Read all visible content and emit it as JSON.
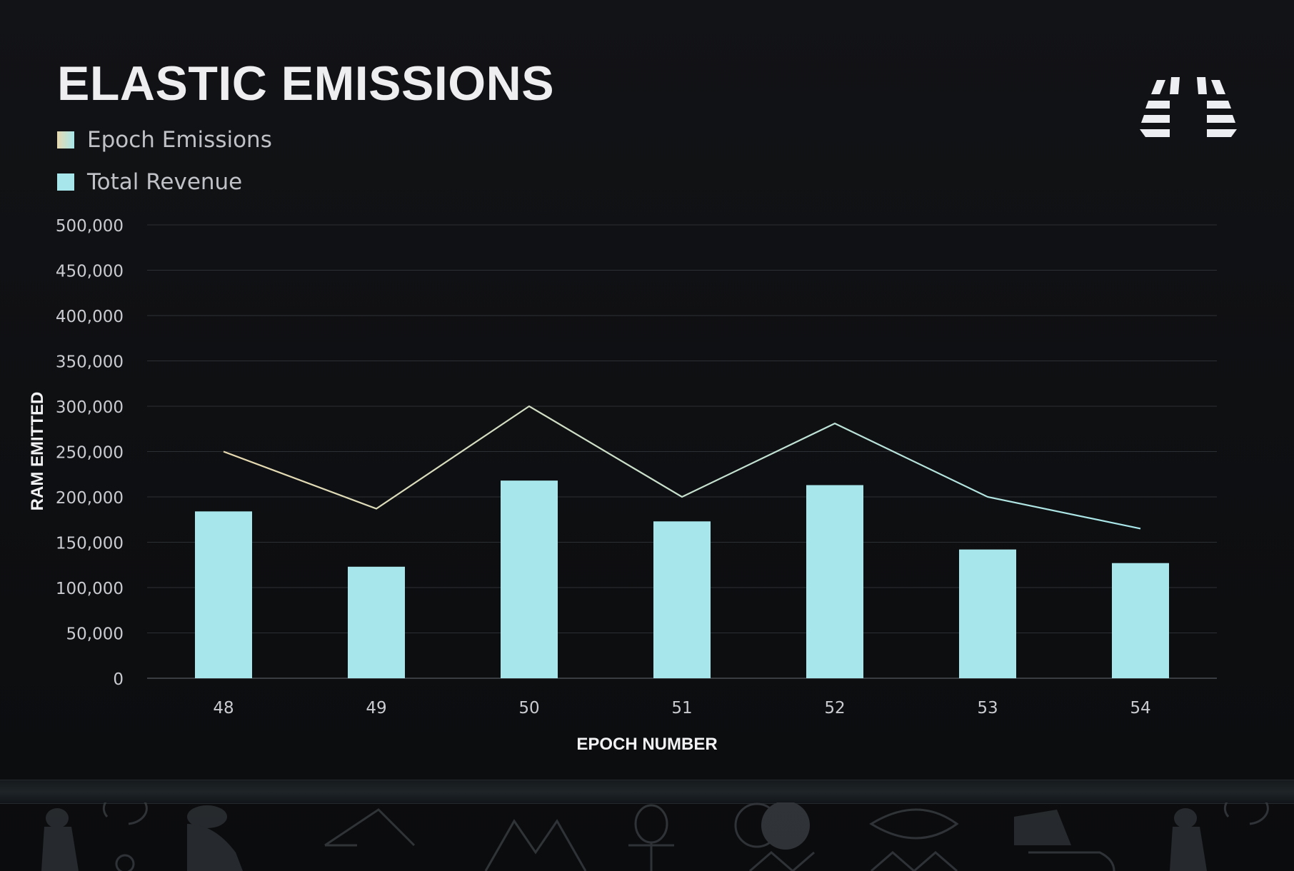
{
  "title": "ELASTIC EMISSIONS",
  "legend": [
    {
      "label": "Epoch Emissions",
      "color": "#e7d9b0"
    },
    {
      "label": "Total Revenue",
      "color": "#a7e6ea"
    }
  ],
  "chart_data": {
    "type": "bar",
    "xlabel": "EPOCH NUMBER",
    "ylabel": "RAM EMITTED",
    "categories": [
      "48",
      "49",
      "50",
      "51",
      "52",
      "53",
      "54"
    ],
    "ylim": [
      0,
      500000
    ],
    "yticks": [
      "0",
      "50,000",
      "100,000",
      "150,000",
      "200,000",
      "250,000",
      "300,000",
      "350,000",
      "400,000",
      "450,000",
      "500,000"
    ],
    "grid": true,
    "legend_position": "top-left",
    "series": [
      {
        "name": "Total Revenue",
        "type": "bar",
        "color": "#a7e6ea",
        "values": [
          184000,
          123000,
          218000,
          173000,
          213000,
          142000,
          127000
        ]
      },
      {
        "name": "Epoch Emissions",
        "type": "line",
        "color": "#e7d9b0",
        "values": [
          250000,
          187000,
          300000,
          200000,
          281000,
          200000,
          165000
        ]
      }
    ]
  },
  "colors": {
    "background": "#0e0f11",
    "grid": "#2c2f33",
    "text": "#e9e9ec",
    "tick_text": "#c9cbd0",
    "line_start": "#e7d9b0",
    "line_end": "#a7e6ea"
  }
}
